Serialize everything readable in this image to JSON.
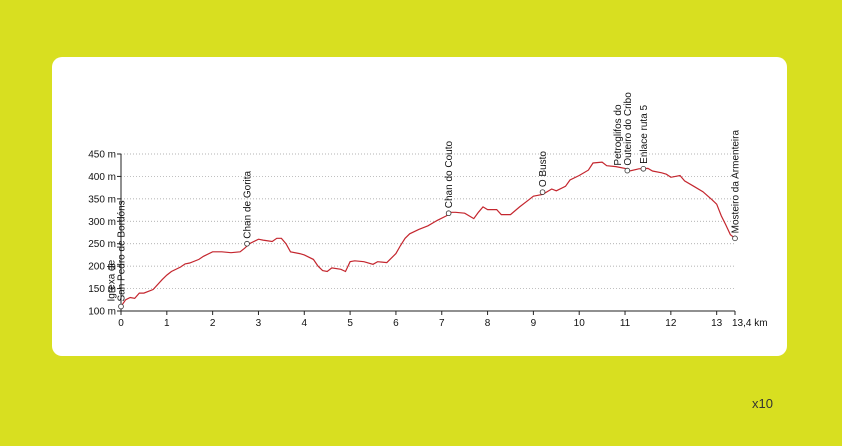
{
  "colors": {
    "background": "#d8df20",
    "card": "#ffffff",
    "profile_line": "#c4262e"
  },
  "footer": {
    "note": "x10"
  },
  "chart_data": {
    "type": "line",
    "title": "",
    "xlabel": "",
    "ylabel": "",
    "x_unit": "km",
    "y_unit": "m",
    "xlim": [
      0,
      13.4
    ],
    "ylim": [
      100,
      450
    ],
    "grid": true,
    "y_ticks": [
      {
        "value": 100,
        "label": "100 m"
      },
      {
        "value": 150,
        "label": "150 m"
      },
      {
        "value": 200,
        "label": "200 m"
      },
      {
        "value": 250,
        "label": "250 m"
      },
      {
        "value": 300,
        "label": "300 m"
      },
      {
        "value": 350,
        "label": "350 m"
      },
      {
        "value": 400,
        "label": "400 m"
      },
      {
        "value": 450,
        "label": "450 m"
      }
    ],
    "x_ticks": [
      {
        "value": 0,
        "label": "0"
      },
      {
        "value": 1,
        "label": "1"
      },
      {
        "value": 2,
        "label": "2"
      },
      {
        "value": 3,
        "label": "3"
      },
      {
        "value": 4,
        "label": "4"
      },
      {
        "value": 5,
        "label": "5"
      },
      {
        "value": 6,
        "label": "6"
      },
      {
        "value": 7,
        "label": "7"
      },
      {
        "value": 8,
        "label": "8"
      },
      {
        "value": 9,
        "label": "9"
      },
      {
        "value": 10,
        "label": "10"
      },
      {
        "value": 11,
        "label": "11"
      },
      {
        "value": 12,
        "label": "12"
      },
      {
        "value": 13,
        "label": "13"
      },
      {
        "value": 13.4,
        "label": "13,4 km"
      }
    ],
    "series": [
      {
        "x": [
          0,
          0.1,
          0.2,
          0.3,
          0.4,
          0.5,
          0.7,
          0.9,
          1.0,
          1.1,
          1.3,
          1.4,
          1.5,
          1.7,
          1.8,
          2.0,
          2.2,
          2.4,
          2.6,
          2.7,
          2.8,
          3.0,
          3.1,
          3.3,
          3.4,
          3.5,
          3.6,
          3.7,
          3.9,
          4.0,
          4.2,
          4.3,
          4.4,
          4.5,
          4.6,
          4.8,
          4.9,
          5.0,
          5.1,
          5.3,
          5.5,
          5.6,
          5.8,
          6.0,
          6.1,
          6.2,
          6.3,
          6.5,
          6.7,
          6.9,
          7.1,
          7.2,
          7.3,
          7.5,
          7.7,
          7.8,
          7.9,
          8.0,
          8.2,
          8.3,
          8.5,
          8.7,
          8.9,
          9.0,
          9.1,
          9.2,
          9.4,
          9.5,
          9.7,
          9.8,
          10.0,
          10.2,
          10.3,
          10.5,
          10.6,
          10.8,
          11.0,
          11.1,
          11.3,
          11.5,
          11.6,
          11.8,
          11.9,
          12.0,
          12.2,
          12.3,
          12.5,
          12.7,
          12.9,
          13.0,
          13.1,
          13.2,
          13.3,
          13.4
        ],
        "y": [
          110,
          125,
          130,
          128,
          140,
          140,
          148,
          170,
          180,
          188,
          198,
          205,
          207,
          215,
          222,
          232,
          232,
          230,
          232,
          240,
          250,
          260,
          258,
          255,
          262,
          262,
          250,
          232,
          228,
          225,
          215,
          200,
          190,
          188,
          196,
          193,
          188,
          210,
          212,
          210,
          204,
          210,
          208,
          228,
          246,
          262,
          272,
          282,
          290,
          302,
          312,
          320,
          320,
          318,
          306,
          320,
          332,
          326,
          326,
          315,
          315,
          332,
          348,
          356,
          358,
          360,
          372,
          368,
          378,
          392,
          402,
          414,
          430,
          432,
          424,
          422,
          418,
          412,
          417,
          418,
          412,
          408,
          405,
          398,
          402,
          390,
          378,
          366,
          348,
          338,
          312,
          292,
          270,
          262
        ]
      }
    ],
    "points_of_interest": [
      {
        "x": 0.0,
        "y": 110,
        "label": "Igrexa de San Pedro de Bordóns"
      },
      {
        "x": 2.75,
        "y": 250,
        "label": "Chan de Gorita"
      },
      {
        "x": 7.15,
        "y": 318,
        "label": "Chan do Couto"
      },
      {
        "x": 9.2,
        "y": 365,
        "label": "O Busto"
      },
      {
        "x": 11.05,
        "y": 413,
        "label": "Petroglifos do Outeiro do Cribo"
      },
      {
        "x": 11.4,
        "y": 417,
        "label": "Enlace ruta 5"
      },
      {
        "x": 13.4,
        "y": 262,
        "label": "Mosteiro da Armenteira"
      }
    ]
  }
}
